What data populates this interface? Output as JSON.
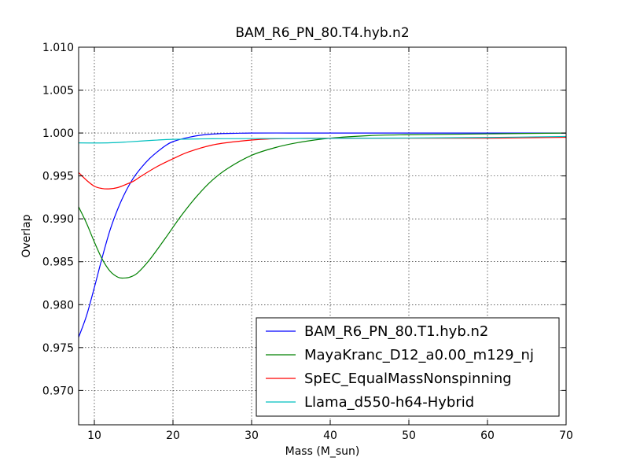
{
  "chart_data": {
    "type": "line",
    "title": "BAM_R6_PN_80.T4.hyb.n2",
    "xlabel": "Mass (M_sun)",
    "ylabel": "Overlap",
    "xlim": [
      8,
      70
    ],
    "ylim": [
      0.966,
      1.01
    ],
    "xticks": [
      10,
      20,
      30,
      40,
      50,
      60,
      70
    ],
    "xtick_labels": [
      "10",
      "20",
      "30",
      "40",
      "50",
      "60",
      "70"
    ],
    "yticks": [
      0.97,
      0.975,
      0.98,
      0.985,
      0.99,
      0.995,
      1.0,
      1.005,
      1.01
    ],
    "ytick_labels": [
      "0.970",
      "0.975",
      "0.980",
      "0.985",
      "0.990",
      "0.995",
      "1.000",
      "1.005",
      "1.010"
    ],
    "grid": true,
    "legend_position": "lower-right",
    "series": [
      {
        "name": "BAM_R6_PN_80.T1.hyb.n2",
        "color": "#0000ff",
        "x": [
          8,
          9,
          10,
          11,
          12,
          13,
          14,
          15,
          16,
          17,
          18,
          19,
          20,
          22,
          24,
          26,
          28,
          30,
          35,
          40,
          50,
          60,
          70
        ],
        "y": [
          0.9762,
          0.9787,
          0.982,
          0.9855,
          0.9887,
          0.9912,
          0.9932,
          0.9948,
          0.996,
          0.997,
          0.9978,
          0.9985,
          0.999,
          0.9995,
          0.9998,
          0.99993,
          0.99997,
          1.0,
          1.0,
          1.0,
          1.0,
          1.0,
          1.0
        ]
      },
      {
        "name": "MayaKranc_D12_a0.00_m129_nj",
        "color": "#008000",
        "x": [
          8,
          9,
          10,
          11,
          12,
          13,
          13.7,
          14.5,
          15.5,
          17,
          19,
          21,
          23,
          25,
          27,
          30,
          33,
          36,
          40,
          45,
          50,
          60,
          70
        ],
        "y": [
          0.9914,
          0.9895,
          0.9873,
          0.9853,
          0.9839,
          0.9832,
          0.9831,
          0.9832,
          0.9837,
          0.9852,
          0.9877,
          0.9903,
          0.9926,
          0.9945,
          0.9959,
          0.9974,
          0.9983,
          0.9989,
          0.9994,
          0.9997,
          0.9998,
          0.9999,
          1.0
        ]
      },
      {
        "name": "SpEC_EqualMassNonspinning",
        "color": "#ff0000",
        "x": [
          8,
          9,
          10,
          11,
          12,
          13,
          14,
          15,
          16,
          18,
          20,
          22,
          25,
          28,
          32,
          40,
          50,
          60,
          70
        ],
        "y": [
          0.9954,
          0.9945,
          0.9938,
          0.99353,
          0.9935,
          0.99365,
          0.994,
          0.9944,
          0.995,
          0.9961,
          0.997,
          0.9978,
          0.9986,
          0.999,
          0.9993,
          0.9994,
          0.9994,
          0.9994,
          0.9995
        ]
      },
      {
        "name": "Llama_d550-h64-Hybrid",
        "color": "#00bfbf",
        "x": [
          8,
          10,
          12,
          14,
          16,
          18,
          20,
          25,
          30,
          40,
          50,
          60,
          70
        ],
        "y": [
          0.99885,
          0.99884,
          0.99886,
          0.99895,
          0.99907,
          0.99918,
          0.99926,
          0.99933,
          0.99935,
          0.99938,
          0.99942,
          0.99948,
          0.9996
        ]
      }
    ]
  }
}
